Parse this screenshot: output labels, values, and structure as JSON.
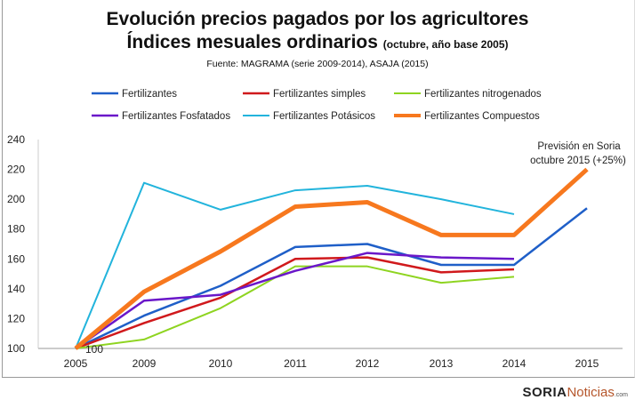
{
  "chart_data": {
    "type": "line",
    "title": "Evolución precios pagados por los agricultores",
    "subtitle_main": "Índices mesuales ordinarios",
    "subtitle_note": "(octubre, año base 2005)",
    "source": "Fuente: MAGRAMA (serie 2009-2014), ASAJA (2015)",
    "categories": [
      "2005",
      "2009",
      "2010",
      "2011",
      "2012",
      "2013",
      "2014",
      "2015"
    ],
    "ylim": [
      100,
      240
    ],
    "yticks": [
      100,
      120,
      140,
      160,
      180,
      200,
      220,
      240
    ],
    "grid": false,
    "legend_placement": "top",
    "series": [
      {
        "name": "Fertilizantes",
        "color": "#1f5fc8",
        "width": 2.5,
        "values": [
          100,
          122,
          142,
          168,
          170,
          156,
          156,
          194
        ]
      },
      {
        "name": "Fertilizantes simples",
        "color": "#d0191c",
        "width": 2.5,
        "values": [
          100,
          117,
          134,
          160,
          161,
          151,
          153,
          null
        ]
      },
      {
        "name": "Fertilizantes nitrogenados",
        "color": "#8ed420",
        "width": 2,
        "values": [
          100,
          106,
          127,
          155,
          155,
          144,
          148,
          null
        ]
      },
      {
        "name": "Fertilizantes Fosfatados",
        "color": "#6a17c9",
        "width": 2.5,
        "values": [
          100,
          132,
          136,
          152,
          164,
          161,
          160,
          null
        ]
      },
      {
        "name": "Fertilizantes Potásicos",
        "color": "#22b4dc",
        "width": 2,
        "values": [
          100,
          211,
          193,
          206,
          209,
          200,
          190,
          null
        ]
      },
      {
        "name": "Fertilizantes Compuestos",
        "color": "#f7781e",
        "width": 5,
        "values": [
          100,
          138,
          165,
          195,
          198,
          176,
          176,
          220
        ]
      }
    ],
    "annotations": {
      "base_label": "100",
      "forecast_line1": "Previsión en Soria",
      "forecast_line2": "octubre 2015 (+25%)"
    }
  },
  "logo": {
    "part1": "SORIA",
    "part2": "Noticias",
    ".com": ".com"
  }
}
